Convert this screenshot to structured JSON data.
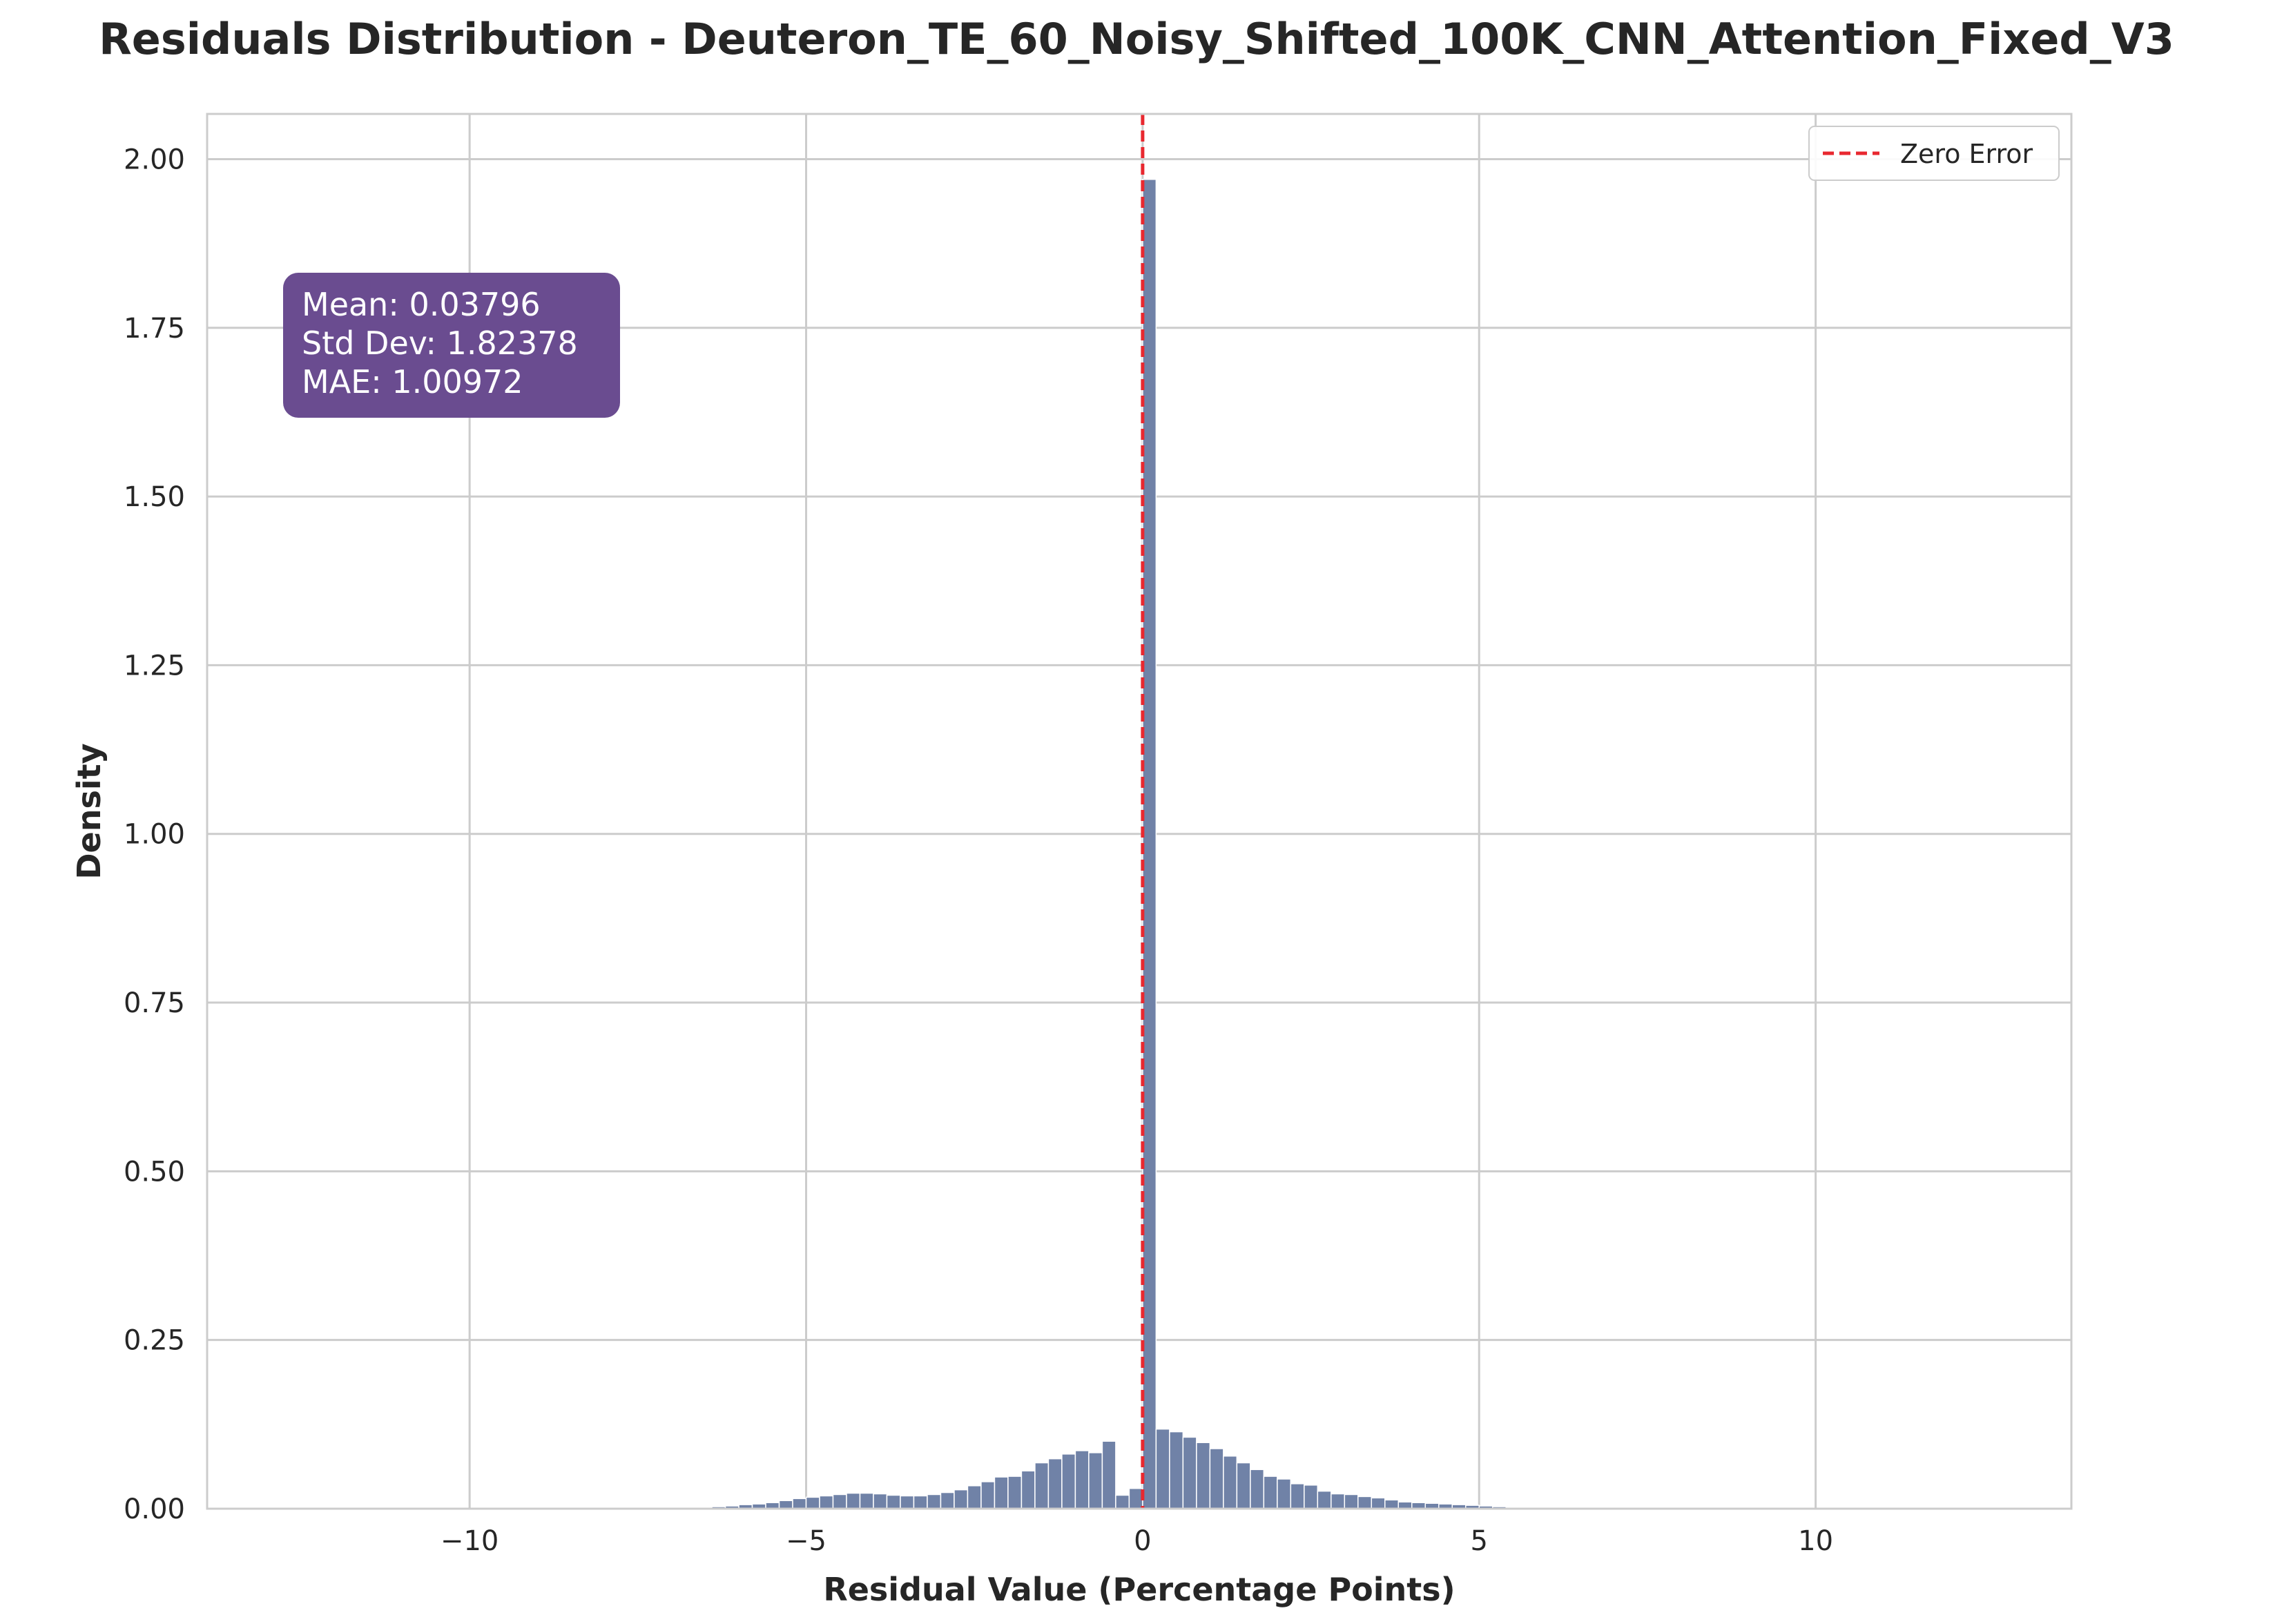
{
  "chart_data": {
    "type": "bar",
    "title": "Residuals Distribution - Deuteron_TE_60_Noisy_Shifted_100K_CNN_Attention_Fixed_V3",
    "xlabel": "Residual Value (Percentage Points)",
    "ylabel": "Density",
    "xlim": [
      -13.9,
      13.8
    ],
    "ylim": [
      0,
      2.067
    ],
    "xticks": [
      -10,
      -5,
      0,
      5,
      10
    ],
    "xtick_labels": [
      "−10",
      "−5",
      "0",
      "5",
      "10"
    ],
    "yticks": [
      0,
      0.25,
      0.5,
      0.75,
      1.0,
      1.25,
      1.5,
      1.75,
      2.0
    ],
    "ytick_labels": [
      "0.00",
      "0.25",
      "0.50",
      "0.75",
      "1.00",
      "1.25",
      "1.50",
      "1.75",
      "2.00"
    ],
    "grid": true,
    "bin_width": 0.2,
    "bins": [
      {
        "x0": -6.6,
        "v": 0.002
      },
      {
        "x0": -6.4,
        "v": 0.003
      },
      {
        "x0": -6.2,
        "v": 0.004
      },
      {
        "x0": -6.0,
        "v": 0.006
      },
      {
        "x0": -5.8,
        "v": 0.007
      },
      {
        "x0": -5.6,
        "v": 0.009
      },
      {
        "x0": -5.4,
        "v": 0.012
      },
      {
        "x0": -5.2,
        "v": 0.015
      },
      {
        "x0": -5.0,
        "v": 0.017
      },
      {
        "x0": -4.8,
        "v": 0.019
      },
      {
        "x0": -4.6,
        "v": 0.021
      },
      {
        "x0": -4.4,
        "v": 0.023
      },
      {
        "x0": -4.2,
        "v": 0.023
      },
      {
        "x0": -4.0,
        "v": 0.022
      },
      {
        "x0": -3.8,
        "v": 0.02
      },
      {
        "x0": -3.6,
        "v": 0.019
      },
      {
        "x0": -3.4,
        "v": 0.019
      },
      {
        "x0": -3.2,
        "v": 0.021
      },
      {
        "x0": -3.0,
        "v": 0.024
      },
      {
        "x0": -2.8,
        "v": 0.028
      },
      {
        "x0": -2.6,
        "v": 0.034
      },
      {
        "x0": -2.4,
        "v": 0.04
      },
      {
        "x0": -2.2,
        "v": 0.047
      },
      {
        "x0": -2.0,
        "v": 0.048
      },
      {
        "x0": -1.8,
        "v": 0.056
      },
      {
        "x0": -1.6,
        "v": 0.068
      },
      {
        "x0": -1.4,
        "v": 0.074
      },
      {
        "x0": -1.2,
        "v": 0.081
      },
      {
        "x0": -1.0,
        "v": 0.086
      },
      {
        "x0": -0.8,
        "v": 0.083
      },
      {
        "x0": -0.6,
        "v": 0.1
      },
      {
        "x0": -0.4,
        "v": 0.02
      },
      {
        "x0": -0.2,
        "v": 0.03
      },
      {
        "x0": 0.0,
        "v": 1.97
      },
      {
        "x0": 0.2,
        "v": 0.118
      },
      {
        "x0": 0.4,
        "v": 0.114
      },
      {
        "x0": 0.6,
        "v": 0.106
      },
      {
        "x0": 0.8,
        "v": 0.098
      },
      {
        "x0": 1.0,
        "v": 0.089
      },
      {
        "x0": 1.2,
        "v": 0.078
      },
      {
        "x0": 1.4,
        "v": 0.068
      },
      {
        "x0": 1.6,
        "v": 0.058
      },
      {
        "x0": 1.8,
        "v": 0.048
      },
      {
        "x0": 2.0,
        "v": 0.044
      },
      {
        "x0": 2.2,
        "v": 0.037
      },
      {
        "x0": 2.4,
        "v": 0.035
      },
      {
        "x0": 2.6,
        "v": 0.026
      },
      {
        "x0": 2.8,
        "v": 0.022
      },
      {
        "x0": 3.0,
        "v": 0.021
      },
      {
        "x0": 3.2,
        "v": 0.018
      },
      {
        "x0": 3.4,
        "v": 0.016
      },
      {
        "x0": 3.6,
        "v": 0.013
      },
      {
        "x0": 3.8,
        "v": 0.01
      },
      {
        "x0": 4.0,
        "v": 0.009
      },
      {
        "x0": 4.2,
        "v": 0.008
      },
      {
        "x0": 4.4,
        "v": 0.007
      },
      {
        "x0": 4.6,
        "v": 0.006
      },
      {
        "x0": 4.8,
        "v": 0.005
      },
      {
        "x0": 5.0,
        "v": 0.004
      },
      {
        "x0": 5.2,
        "v": 0.003
      },
      {
        "x0": 5.4,
        "v": 0.002
      },
      {
        "x0": 5.6,
        "v": 0.002
      },
      {
        "x0": 5.8,
        "v": 0.001
      }
    ],
    "reference_line": {
      "x": 0,
      "label": "Zero Error",
      "style": "dashed",
      "color": "#e8282f"
    },
    "legend": {
      "placement": "top-right",
      "entries": [
        "Zero Error"
      ]
    },
    "stats": {
      "mean": "Mean: 0.03796",
      "std": "Std Dev: 1.82378",
      "mae": "MAE: 1.00972",
      "placement": "top-left"
    },
    "colors": {
      "bar": "#7082a7",
      "stats_box": "#6a4c90",
      "zero_line": "#e8282f",
      "grid": "#cccccc"
    }
  }
}
